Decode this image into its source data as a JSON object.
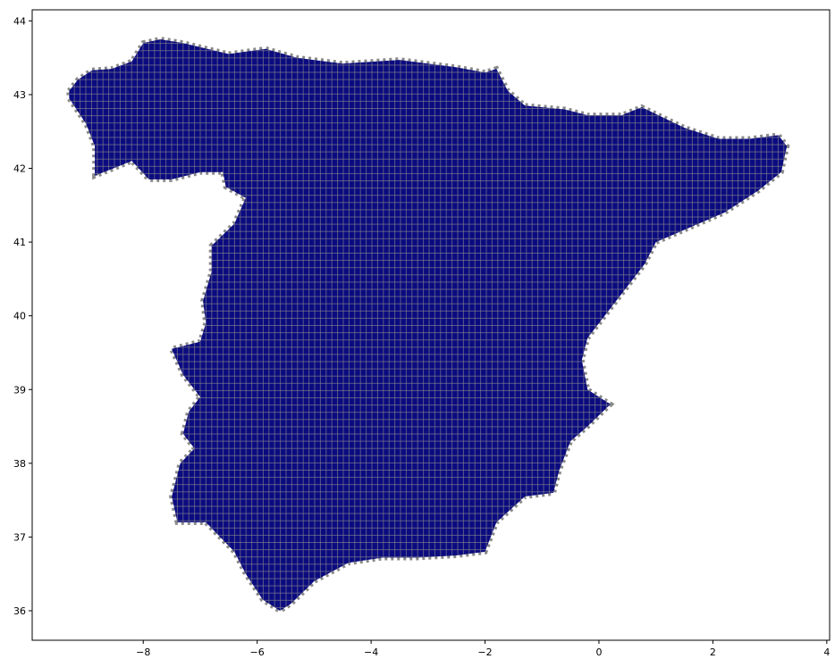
{
  "chart_data": {
    "type": "map",
    "description_units": "degrees longitude (x) and degrees latitude (y)",
    "xlim": [
      -9.95,
      4.05
    ],
    "ylim": [
      35.6,
      44.15
    ],
    "x_ticks": [
      -8,
      -6,
      -4,
      -2,
      0,
      2,
      4
    ],
    "y_ticks": [
      36,
      37,
      38,
      39,
      40,
      41,
      42,
      43,
      44
    ],
    "x_tick_labels": [
      "−8",
      "−6",
      "−4",
      "−2",
      "0",
      "2",
      "4"
    ],
    "y_tick_labels": [
      "36",
      "37",
      "38",
      "39",
      "40",
      "41",
      "42",
      "43",
      "44"
    ],
    "grid_cell_size_deg": 0.1,
    "colors": {
      "land_fill": "#0b0b80",
      "grid_cell_edge": "#8a8a8a",
      "background": "#ffffff",
      "axes": "#000000"
    },
    "outline_lon_lat": [
      [
        -9.3,
        43.05
      ],
      [
        -9.15,
        43.2
      ],
      [
        -8.9,
        43.33
      ],
      [
        -8.55,
        43.35
      ],
      [
        -8.2,
        43.45
      ],
      [
        -8.0,
        43.7
      ],
      [
        -7.7,
        43.75
      ],
      [
        -7.3,
        43.7
      ],
      [
        -6.5,
        43.55
      ],
      [
        -5.85,
        43.62
      ],
      [
        -5.3,
        43.5
      ],
      [
        -4.5,
        43.42
      ],
      [
        -3.9,
        43.45
      ],
      [
        -3.5,
        43.47
      ],
      [
        -3.0,
        43.42
      ],
      [
        -2.5,
        43.37
      ],
      [
        -2.0,
        43.3
      ],
      [
        -1.8,
        43.35
      ],
      [
        -1.6,
        43.05
      ],
      [
        -1.3,
        42.85
      ],
      [
        -0.6,
        42.8
      ],
      [
        -0.2,
        42.72
      ],
      [
        0.4,
        42.72
      ],
      [
        0.75,
        42.83
      ],
      [
        1.5,
        42.55
      ],
      [
        2.1,
        42.4
      ],
      [
        2.65,
        42.4
      ],
      [
        3.15,
        42.45
      ],
      [
        3.3,
        42.3
      ],
      [
        3.2,
        41.95
      ],
      [
        2.8,
        41.7
      ],
      [
        2.2,
        41.4
      ],
      [
        1.6,
        41.2
      ],
      [
        1.0,
        41.0
      ],
      [
        0.8,
        40.7
      ],
      [
        0.5,
        40.4
      ],
      [
        0.1,
        40.0
      ],
      [
        -0.2,
        39.7
      ],
      [
        -0.3,
        39.4
      ],
      [
        -0.2,
        39.0
      ],
      [
        0.2,
        38.8
      ],
      [
        -0.2,
        38.5
      ],
      [
        -0.5,
        38.3
      ],
      [
        -0.7,
        37.9
      ],
      [
        -0.8,
        37.6
      ],
      [
        -1.3,
        37.55
      ],
      [
        -1.8,
        37.2
      ],
      [
        -2.0,
        36.8
      ],
      [
        -2.5,
        36.75
      ],
      [
        -3.2,
        36.72
      ],
      [
        -3.8,
        36.72
      ],
      [
        -4.4,
        36.65
      ],
      [
        -5.0,
        36.4
      ],
      [
        -5.4,
        36.1
      ],
      [
        -5.6,
        36.0
      ],
      [
        -5.9,
        36.15
      ],
      [
        -6.2,
        36.5
      ],
      [
        -6.4,
        36.8
      ],
      [
        -6.9,
        37.2
      ],
      [
        -7.4,
        37.2
      ],
      [
        -7.5,
        37.55
      ],
      [
        -7.35,
        38.0
      ],
      [
        -7.1,
        38.2
      ],
      [
        -7.3,
        38.4
      ],
      [
        -7.2,
        38.7
      ],
      [
        -7.0,
        38.9
      ],
      [
        -7.3,
        39.2
      ],
      [
        -7.5,
        39.55
      ],
      [
        -7.0,
        39.65
      ],
      [
        -6.9,
        39.9
      ],
      [
        -6.95,
        40.2
      ],
      [
        -6.8,
        40.6
      ],
      [
        -6.8,
        40.95
      ],
      [
        -6.4,
        41.25
      ],
      [
        -6.2,
        41.6
      ],
      [
        -6.55,
        41.75
      ],
      [
        -6.6,
        41.95
      ],
      [
        -7.0,
        41.95
      ],
      [
        -7.5,
        41.85
      ],
      [
        -7.9,
        41.85
      ],
      [
        -8.2,
        42.1
      ],
      [
        -8.85,
        41.9
      ],
      [
        -8.85,
        42.3
      ],
      [
        -9.0,
        42.6
      ],
      [
        -9.3,
        42.95
      ]
    ]
  }
}
